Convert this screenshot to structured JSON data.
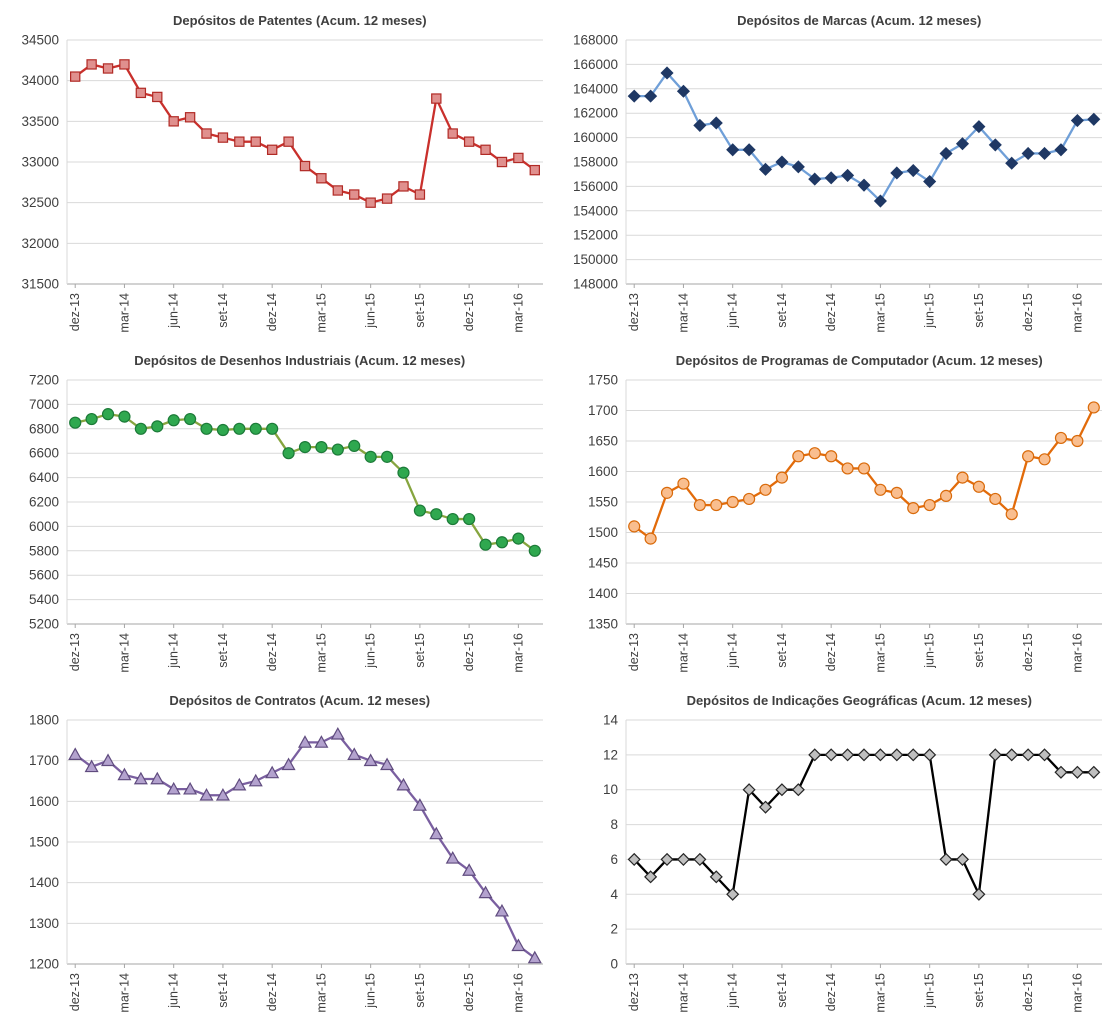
{
  "style": {
    "grid_color": "#d9d9d9",
    "axis_color": "#a6a6a6",
    "label_color": "#3f3f3f"
  },
  "chart_data": [
    {
      "type": "line",
      "title": "Depósitos de Patentes (Acum. 12 meses)",
      "marker": "square",
      "line_color": "#c9302c",
      "marker_fill": "#e0908e",
      "marker_stroke": "#b12a25",
      "ylim": [
        31500,
        34500
      ],
      "ystep": 500,
      "x_ticks": [
        "dez-13",
        "mar-14",
        "jun-14",
        "set-14",
        "dez-14",
        "mar-15",
        "jun-15",
        "set-15",
        "dez-15",
        "mar-16"
      ],
      "tick_every": 3,
      "values": [
        34050,
        34200,
        34150,
        34200,
        33850,
        33800,
        33500,
        33550,
        33350,
        33300,
        33250,
        33250,
        33150,
        33250,
        32950,
        32800,
        32650,
        32600,
        32500,
        32550,
        32700,
        32600,
        33780,
        33350,
        33250,
        33150,
        33000,
        33050,
        32900
      ]
    },
    {
      "type": "line",
      "title": "Depósitos de Marcas (Acum. 12 meses)",
      "marker": "diamond",
      "line_color": "#6f9fd8",
      "marker_fill": "#1f3864",
      "marker_stroke": "#1f3864",
      "ylim": [
        148000,
        168000
      ],
      "ystep": 2000,
      "x_ticks": [
        "dez-13",
        "mar-14",
        "jun-14",
        "set-14",
        "dez-14",
        "mar-15",
        "jun-15",
        "set-15",
        "dez-15",
        "mar-16"
      ],
      "tick_every": 3,
      "values": [
        163400,
        163400,
        165300,
        163800,
        161000,
        161200,
        159000,
        159000,
        157400,
        158000,
        157600,
        156600,
        156700,
        156900,
        156100,
        154800,
        157100,
        157300,
        156400,
        158700,
        159500,
        160900,
        159400,
        157900,
        158700,
        158700,
        159000,
        161400,
        161500
      ]
    },
    {
      "type": "line",
      "title": "Depósitos de Desenhos Industriais (Acum. 12 meses)",
      "marker": "circle",
      "line_color": "#86a53f",
      "marker_fill": "#2fa84f",
      "marker_stroke": "#1c7a38",
      "ylim": [
        5200,
        7200
      ],
      "ystep": 200,
      "x_ticks": [
        "dez-13",
        "mar-14",
        "jun-14",
        "set-14",
        "dez-14",
        "mar-15",
        "jun-15",
        "set-15",
        "dez-15",
        "mar-16"
      ],
      "tick_every": 3,
      "values": [
        6850,
        6880,
        6920,
        6900,
        6800,
        6820,
        6870,
        6880,
        6800,
        6790,
        6800,
        6800,
        6800,
        6600,
        6650,
        6650,
        6630,
        6660,
        6570,
        6570,
        6440,
        6130,
        6100,
        6060,
        6060,
        5850,
        5870,
        5900,
        5800
      ]
    },
    {
      "type": "line",
      "title": "Depósitos de Programas  de Computador (Acum. 12 meses)",
      "marker": "circle",
      "line_color": "#e26b0a",
      "marker_fill": "#f9be8f",
      "marker_stroke": "#d96a0a",
      "ylim": [
        1350,
        1750
      ],
      "ystep": 50,
      "x_ticks": [
        "dez-13",
        "mar-14",
        "jun-14",
        "set-14",
        "dez-14",
        "mar-15",
        "jun-15",
        "set-15",
        "dez-15",
        "mar-16"
      ],
      "tick_every": 3,
      "values": [
        1510,
        1490,
        1565,
        1580,
        1545,
        1545,
        1550,
        1555,
        1570,
        1590,
        1625,
        1630,
        1625,
        1605,
        1605,
        1570,
        1565,
        1540,
        1545,
        1560,
        1590,
        1575,
        1555,
        1530,
        1625,
        1620,
        1655,
        1650,
        1705
      ]
    },
    {
      "type": "line",
      "title": "Depósitos de Contratos (Acum. 12 meses)",
      "marker": "triangle",
      "line_color": "#7a5fa0",
      "marker_fill": "#b3a2ce",
      "marker_stroke": "#5f4b7e",
      "ylim": [
        1200,
        1800
      ],
      "ystep": 100,
      "x_ticks": [
        "dez-13",
        "mar-14",
        "jun-14",
        "set-14",
        "dez-14",
        "mar-15",
        "jun-15",
        "set-15",
        "dez-15",
        "mar-16"
      ],
      "tick_every": 3,
      "values": [
        1715,
        1685,
        1700,
        1665,
        1655,
        1655,
        1630,
        1630,
        1615,
        1615,
        1640,
        1650,
        1670,
        1690,
        1745,
        1745,
        1765,
        1715,
        1700,
        1690,
        1640,
        1590,
        1520,
        1460,
        1430,
        1375,
        1330,
        1245,
        1215
      ]
    },
    {
      "type": "line",
      "title": "Depósitos de Indicações Geográficas (Acum. 12 meses)",
      "marker": "diamond",
      "line_color": "#000000",
      "marker_fill": "#bfbfbf",
      "marker_stroke": "#262626",
      "ylim": [
        0,
        14
      ],
      "ystep": 2,
      "x_ticks": [
        "dez-13",
        "mar-14",
        "jun-14",
        "set-14",
        "dez-14",
        "mar-15",
        "jun-15",
        "set-15",
        "dez-15",
        "mar-16"
      ],
      "tick_every": 3,
      "values": [
        6,
        5,
        6,
        6,
        6,
        5,
        4,
        10,
        9,
        10,
        10,
        12,
        12,
        12,
        12,
        12,
        12,
        12,
        12,
        6,
        6,
        4,
        12,
        12,
        12,
        12,
        11,
        11,
        11
      ]
    }
  ]
}
